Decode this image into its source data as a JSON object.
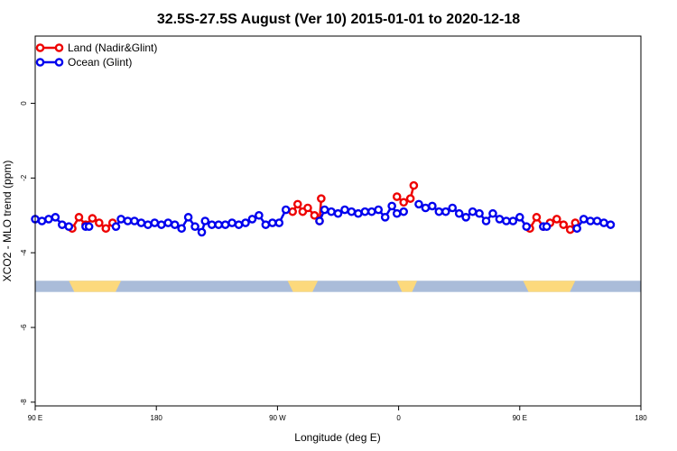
{
  "chart_data": {
    "type": "line",
    "title": "32.5S-27.5S August (Ver 10)   2015-01-01 to 2020-12-18",
    "xlabel": "Longitude (deg E)",
    "ylabel": "XCO2 - MLO trend (ppm)",
    "xlim": [
      90,
      450
    ],
    "ylim": [
      -8.1,
      1.8
    ],
    "x_ticks": [
      {
        "value": 90,
        "label": "90 E"
      },
      {
        "value": 162,
        "label": "180"
      },
      {
        "value": 234,
        "label": "90 W"
      },
      {
        "value": 306,
        "label": "0"
      },
      {
        "value": 378,
        "label": "90 E"
      },
      {
        "value": 450,
        "label": "180"
      }
    ],
    "y_ticks": [
      {
        "value": 0,
        "label": "0"
      },
      {
        "value": -2,
        "label": "-2"
      },
      {
        "value": -4,
        "label": "-4"
      },
      {
        "value": -6,
        "label": "-6"
      },
      {
        "value": -8,
        "label": "-8"
      }
    ],
    "legend": {
      "position": "top-left"
    },
    "land_band": {
      "y_top": -4.75,
      "y_bottom": -5.05,
      "ocean_color": "#aabcd9",
      "land_color": "#fcd97c",
      "land_segments": [
        [
          110,
          141
        ],
        [
          240,
          258
        ],
        [
          305,
          317
        ],
        [
          380,
          411
        ]
      ]
    },
    "series": [
      {
        "name": "Land (Nadir&Glint)",
        "color": "#ee0000",
        "points": [
          [
            112,
            -3.35
          ],
          [
            116,
            -3.05
          ],
          [
            120,
            -3.25
          ],
          [
            124,
            -3.08
          ],
          [
            128,
            -3.2
          ],
          [
            132,
            -3.35
          ],
          [
            136,
            -3.2
          ],
          [
            243,
            -2.9
          ],
          [
            246,
            -2.7
          ],
          [
            249,
            -2.9
          ],
          [
            252,
            -2.8
          ],
          [
            256,
            -3.0
          ],
          [
            259,
            -3.15
          ],
          [
            260,
            -2.55
          ],
          [
            305,
            -2.5
          ],
          [
            309,
            -2.65
          ],
          [
            313,
            -2.55
          ],
          [
            315,
            -2.2
          ],
          [
            384,
            -3.35
          ],
          [
            388,
            -3.05
          ],
          [
            392,
            -3.3
          ],
          [
            396,
            -3.2
          ],
          [
            400,
            -3.1
          ],
          [
            404,
            -3.25
          ],
          [
            408,
            -3.38
          ],
          [
            411,
            -3.2
          ]
        ]
      },
      {
        "name": "Ocean (Glint)",
        "color": "#0000ee",
        "points": [
          [
            90,
            -3.1
          ],
          [
            94,
            -3.15
          ],
          [
            98,
            -3.1
          ],
          [
            102,
            -3.05
          ],
          [
            106,
            -3.25
          ],
          [
            110,
            -3.3
          ],
          [
            120,
            -3.3
          ],
          [
            122,
            -3.3
          ],
          [
            138,
            -3.3
          ],
          [
            141,
            -3.1
          ],
          [
            145,
            -3.15
          ],
          [
            149,
            -3.15
          ],
          [
            153,
            -3.2
          ],
          [
            157,
            -3.25
          ],
          [
            161,
            -3.2
          ],
          [
            165,
            -3.25
          ],
          [
            169,
            -3.2
          ],
          [
            173,
            -3.25
          ],
          [
            177,
            -3.35
          ],
          [
            181,
            -3.05
          ],
          [
            185,
            -3.3
          ],
          [
            189,
            -3.45
          ],
          [
            191,
            -3.15
          ],
          [
            195,
            -3.25
          ],
          [
            199,
            -3.25
          ],
          [
            203,
            -3.25
          ],
          [
            207,
            -3.2
          ],
          [
            211,
            -3.25
          ],
          [
            215,
            -3.2
          ],
          [
            219,
            -3.1
          ],
          [
            223,
            -3.0
          ],
          [
            227,
            -3.25
          ],
          [
            231,
            -3.2
          ],
          [
            235,
            -3.2
          ],
          [
            239,
            -2.85
          ],
          [
            259,
            -3.15
          ],
          [
            262,
            -2.85
          ],
          [
            266,
            -2.9
          ],
          [
            270,
            -2.95
          ],
          [
            274,
            -2.85
          ],
          [
            278,
            -2.9
          ],
          [
            282,
            -2.95
          ],
          [
            286,
            -2.9
          ],
          [
            290,
            -2.9
          ],
          [
            294,
            -2.85
          ],
          [
            298,
            -3.05
          ],
          [
            302,
            -2.75
          ],
          [
            305,
            -2.95
          ],
          [
            309,
            -2.9
          ],
          [
            318,
            -2.7
          ],
          [
            322,
            -2.8
          ],
          [
            326,
            -2.75
          ],
          [
            330,
            -2.9
          ],
          [
            334,
            -2.9
          ],
          [
            338,
            -2.8
          ],
          [
            342,
            -2.95
          ],
          [
            346,
            -3.05
          ],
          [
            350,
            -2.9
          ],
          [
            354,
            -2.95
          ],
          [
            358,
            -3.15
          ],
          [
            362,
            -2.95
          ],
          [
            366,
            -3.1
          ],
          [
            370,
            -3.15
          ],
          [
            374,
            -3.15
          ],
          [
            378,
            -3.05
          ],
          [
            382,
            -3.3
          ],
          [
            392,
            -3.3
          ],
          [
            394,
            -3.3
          ],
          [
            412,
            -3.35
          ],
          [
            416,
            -3.1
          ],
          [
            420,
            -3.15
          ],
          [
            424,
            -3.15
          ],
          [
            428,
            -3.2
          ],
          [
            432,
            -3.25
          ]
        ]
      }
    ]
  }
}
